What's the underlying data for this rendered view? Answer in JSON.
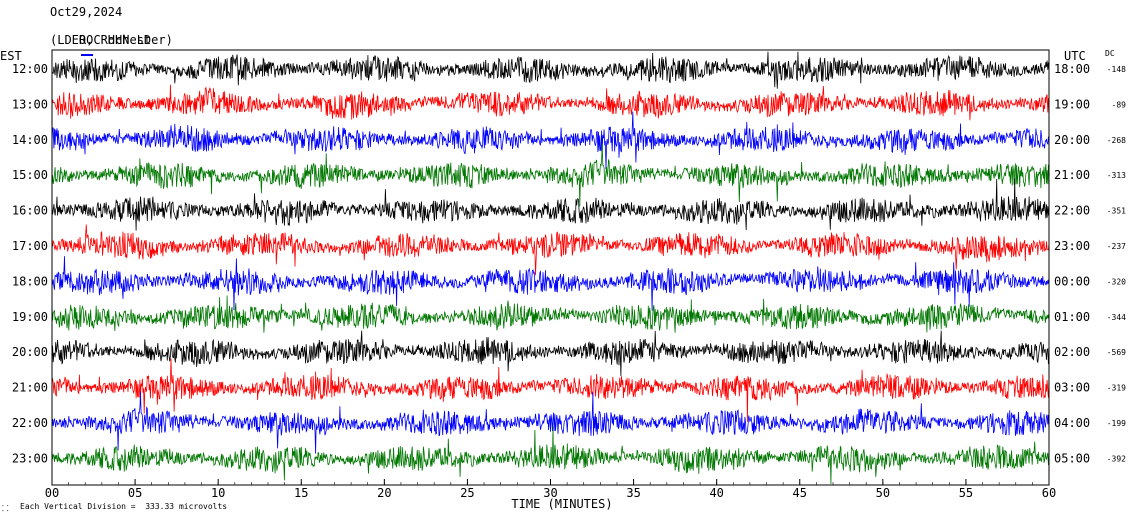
{
  "header": {
    "date": "Oct29,2024",
    "station": "ROC HHN LD",
    "location": "(LDEO, Rochester)"
  },
  "footer": {
    "note": "Each Vertical Division =  333.33 microvolts"
  },
  "colors": {
    "trace_cycle": [
      "#000000",
      "#ff0000",
      "#0000ff",
      "#007700"
    ],
    "legend_mark": "#0000ff"
  },
  "chart_data": {
    "type": "line",
    "xlabel": "TIME (MINUTES)",
    "xlim": [
      0,
      60
    ],
    "x_ticks": [
      "00",
      "05",
      "10",
      "15",
      "20",
      "25",
      "30",
      "35",
      "40",
      "45",
      "50",
      "55",
      "60"
    ],
    "left_axis_label": "EST",
    "right_axis_label": "UTC",
    "dc_label": "DC",
    "rows": [
      {
        "est": "12:00",
        "utc": "18:00",
        "dc": "-148"
      },
      {
        "est": "13:00",
        "utc": "19:00",
        "dc": "-89"
      },
      {
        "est": "14:00",
        "utc": "20:00",
        "dc": "-268"
      },
      {
        "est": "15:00",
        "utc": "21:00",
        "dc": "-313"
      },
      {
        "est": "16:00",
        "utc": "22:00",
        "dc": "-351"
      },
      {
        "est": "17:00",
        "utc": "23:00",
        "dc": "-237"
      },
      {
        "est": "18:00",
        "utc": "00:00",
        "dc": "-320"
      },
      {
        "est": "19:00",
        "utc": "01:00",
        "dc": "-344"
      },
      {
        "est": "20:00",
        "utc": "02:00",
        "dc": "-569"
      },
      {
        "est": "21:00",
        "utc": "03:00",
        "dc": "-319"
      },
      {
        "est": "22:00",
        "utc": "04:00",
        "dc": "-199"
      },
      {
        "est": "23:00",
        "utc": "05:00",
        "dc": "-392"
      }
    ]
  }
}
